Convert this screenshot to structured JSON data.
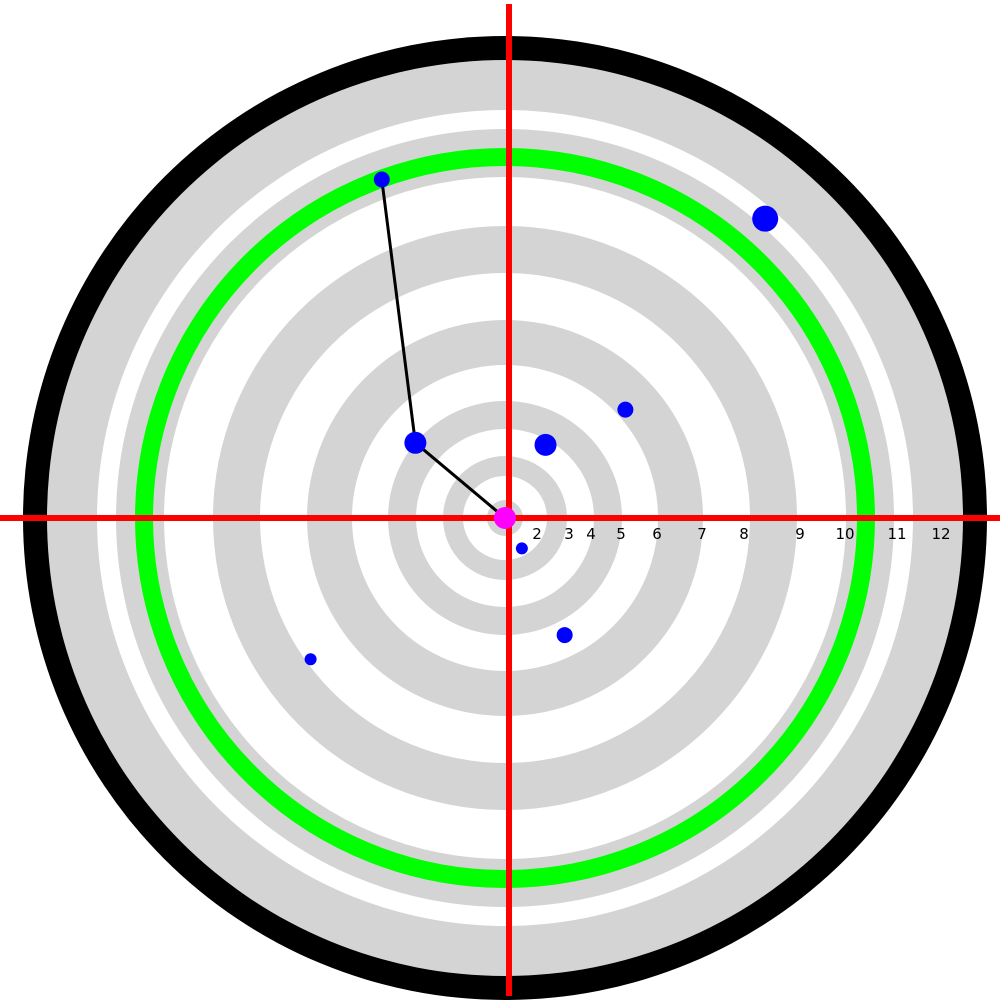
{
  "colors": {
    "background": "#ffffff",
    "outer_band": "#000000",
    "ring_gray": "#d5d4d5",
    "ring_white": "#ffffff",
    "highlight_ring": "#00ff00",
    "crosshair": "#ff0000",
    "center_marker": "#ff00ff",
    "point": "#0000ff",
    "path": "#000000"
  },
  "target": {
    "highlight_ring_index": 10,
    "rings": [
      {
        "index": 1,
        "label": ""
      },
      {
        "index": 2,
        "label": "2"
      },
      {
        "index": 3,
        "label": "3"
      },
      {
        "index": 4,
        "label": "4"
      },
      {
        "index": 5,
        "label": "5"
      },
      {
        "index": 6,
        "label": "6"
      },
      {
        "index": 7,
        "label": "7"
      },
      {
        "index": 8,
        "label": "8"
      },
      {
        "index": 9,
        "label": "9"
      },
      {
        "index": 10,
        "label": "10"
      },
      {
        "index": 11,
        "label": "11"
      },
      {
        "index": 12,
        "label": "12"
      }
    ]
  },
  "points": [
    {
      "id": "p1",
      "ring": 10.4,
      "angle_deg": 110,
      "size": "small",
      "on_path": true
    },
    {
      "id": "p2",
      "ring": 5.0,
      "angle_deg": 140,
      "size": "medium",
      "on_path": true
    },
    {
      "id": "p3",
      "ring": 11.4,
      "angle_deg": 49,
      "size": "large",
      "on_path": false
    },
    {
      "id": "p4",
      "ring": 6.2,
      "angle_deg": 42,
      "size": "small",
      "on_path": false
    },
    {
      "id": "p5",
      "ring": 3.8,
      "angle_deg": 61,
      "size": "medium",
      "on_path": false
    },
    {
      "id": "p6",
      "ring": 1.7,
      "angle_deg": -61,
      "size": "tiny",
      "on_path": false
    },
    {
      "id": "p7",
      "ring": 5.4,
      "angle_deg": -63,
      "size": "small",
      "on_path": false
    },
    {
      "id": "p8",
      "ring": 7.9,
      "angle_deg": -144,
      "size": "tiny",
      "on_path": false
    }
  ],
  "path": [
    "center",
    "p2",
    "p1"
  ]
}
